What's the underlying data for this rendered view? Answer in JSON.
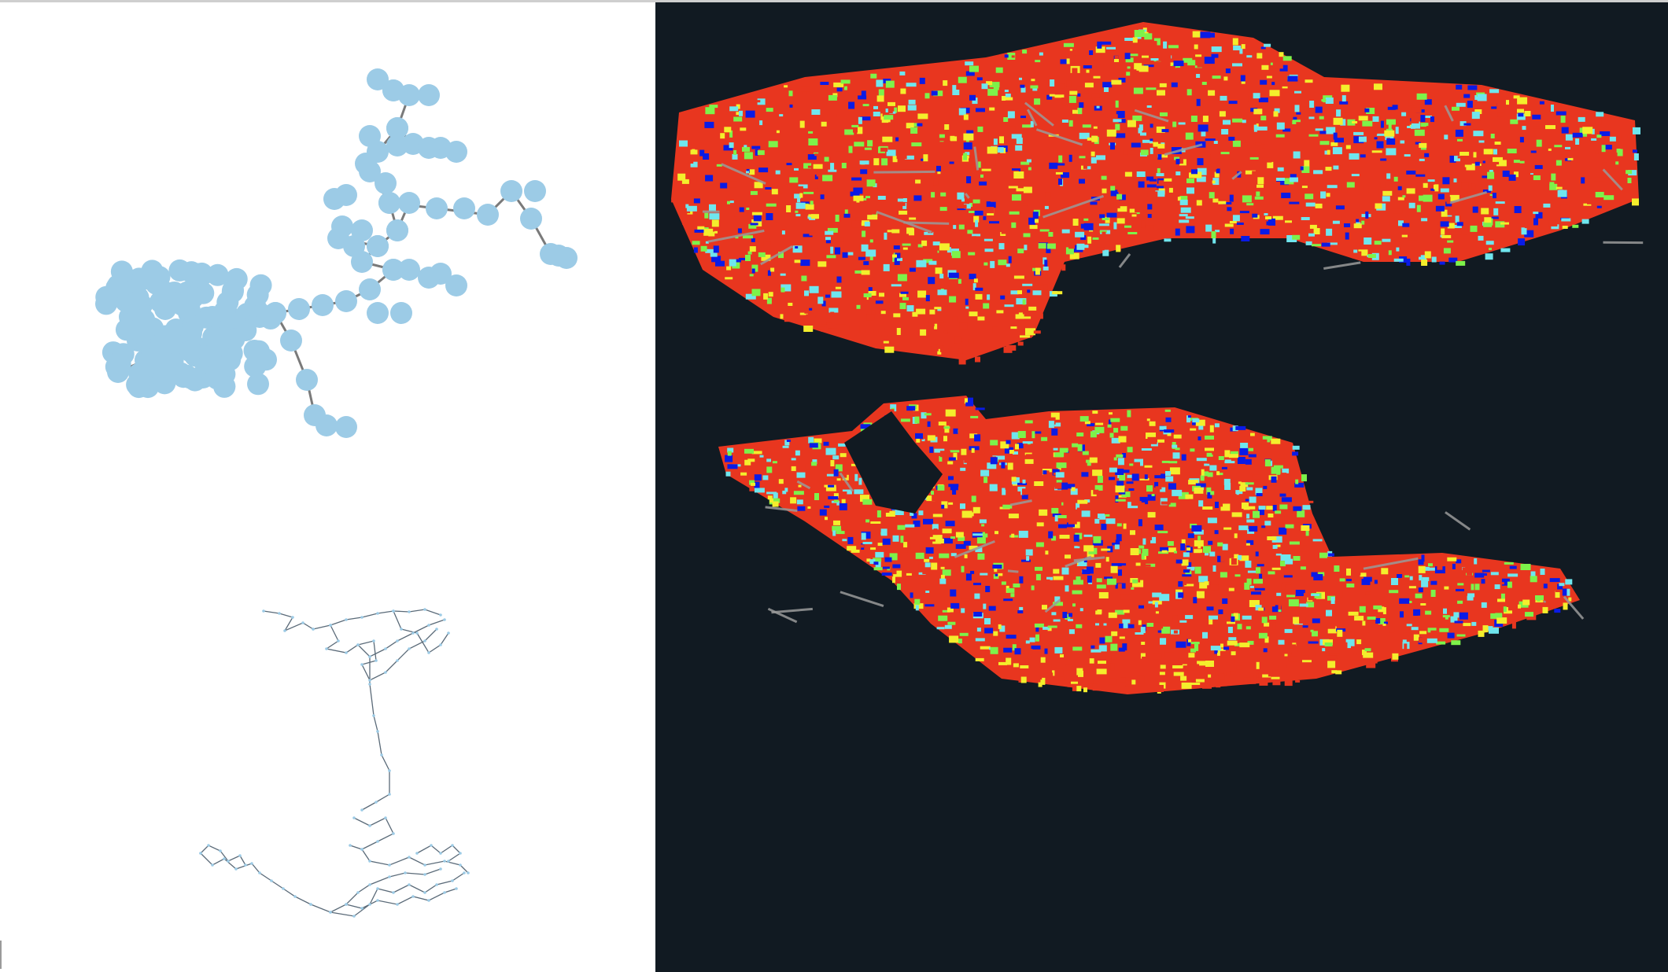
{
  "colors": {
    "node_fill": "#9ccbe6",
    "edge": "#7a7a7a",
    "viewer_background": "#111a22",
    "height_low": "#e8361f",
    "height_mid_low": "#f4ee2c",
    "height_mid": "#7df24a",
    "height_mid_high": "#6fe6ee",
    "height_high": "#0a1be6",
    "trajectory": "#9a9a9a"
  },
  "panels": {
    "top_left": "topological-graph-view",
    "bottom_left": "pose-graph-view",
    "right": "point-cloud-map-viewer"
  }
}
